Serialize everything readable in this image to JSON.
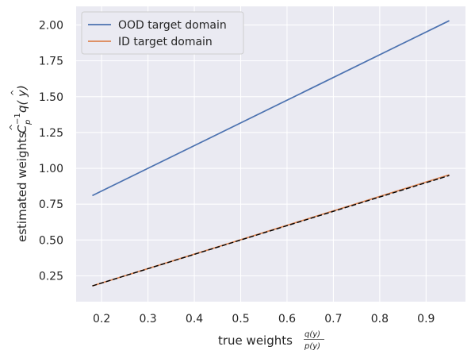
{
  "chart_data": {
    "type": "line",
    "xlabel_main": "true weights",
    "xlabel_frac_num": "q(y)",
    "xlabel_frac_den": "p(y)",
    "ylabel_main": "estimated weights",
    "ylabel_math_C": "C",
    "ylabel_math_exp": "−1",
    "ylabel_math_sub": "p",
    "ylabel_math_q": "q(",
    "ylabel_math_y": "y",
    "ylabel_math_close": ")",
    "xlim": [
      0.145,
      0.985
    ],
    "ylim": [
      0.07,
      2.13
    ],
    "xticks": [
      0.2,
      0.3,
      0.4,
      0.5,
      0.6,
      0.7,
      0.8,
      0.9
    ],
    "xtick_labels": [
      "0.2",
      "0.3",
      "0.4",
      "0.5",
      "0.6",
      "0.7",
      "0.8",
      "0.9"
    ],
    "yticks": [
      0.25,
      0.5,
      0.75,
      1.0,
      1.25,
      1.5,
      1.75,
      2.0
    ],
    "ytick_labels": [
      "0.25",
      "0.50",
      "0.75",
      "1.00",
      "1.25",
      "1.50",
      "1.75",
      "2.00"
    ],
    "grid": true,
    "legend_position": "top-left",
    "series": [
      {
        "name": "OOD target domain",
        "color": "#4c72b0",
        "style": "solid",
        "x": [
          0.18,
          0.95
        ],
        "y": [
          0.81,
          2.03
        ]
      },
      {
        "name": "ID target domain",
        "color": "#dd8452",
        "style": "solid",
        "x": [
          0.18,
          0.95
        ],
        "y": [
          0.18,
          0.955
        ]
      }
    ],
    "reference_line": {
      "color": "#000000",
      "style": "dashed",
      "x": [
        0.18,
        0.95
      ],
      "y": [
        0.18,
        0.95
      ]
    },
    "colors": {
      "plot_background": "#eaeaf2",
      "grid": "#ffffff"
    }
  }
}
